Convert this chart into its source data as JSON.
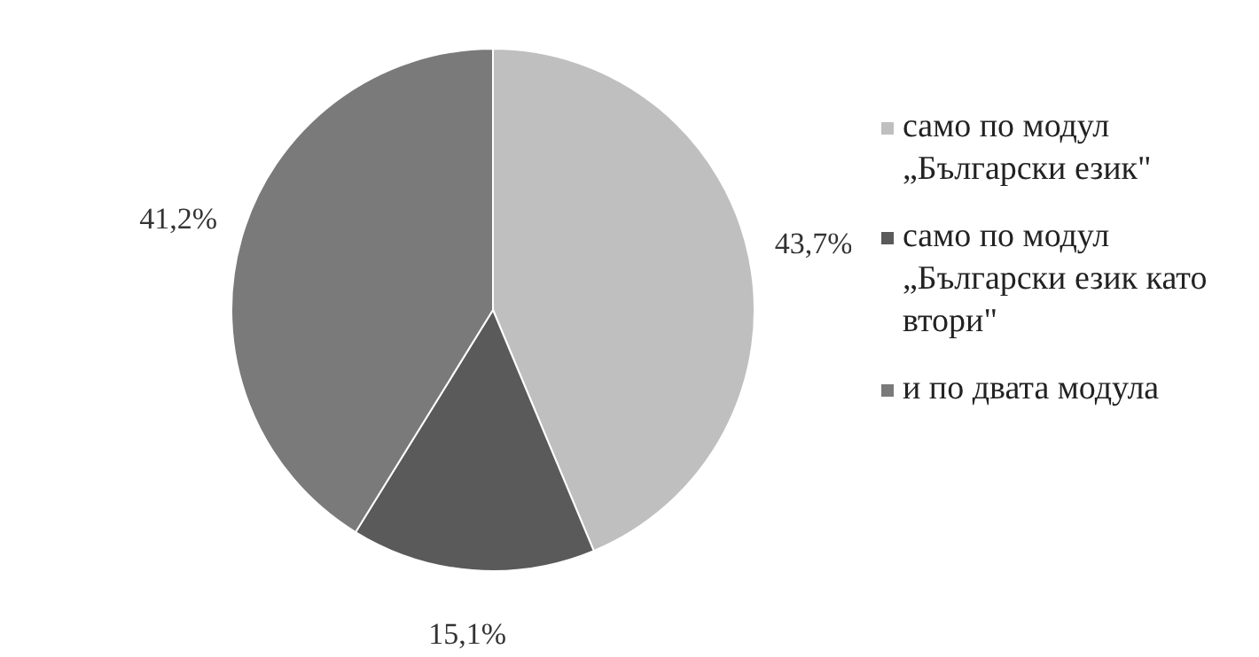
{
  "chart_data": {
    "type": "pie",
    "categories": [
      "само по модул „Български език\"",
      "само по модул „Български език като втори\"",
      "и по двата модула"
    ],
    "values": [
      43.7,
      15.1,
      41.2
    ],
    "colors": [
      "#bfbfbf",
      "#5a5a5a",
      "#7a7a7a"
    ],
    "value_labels": [
      "43,7%",
      "15,1%",
      "41,2%"
    ],
    "legend": "right"
  }
}
